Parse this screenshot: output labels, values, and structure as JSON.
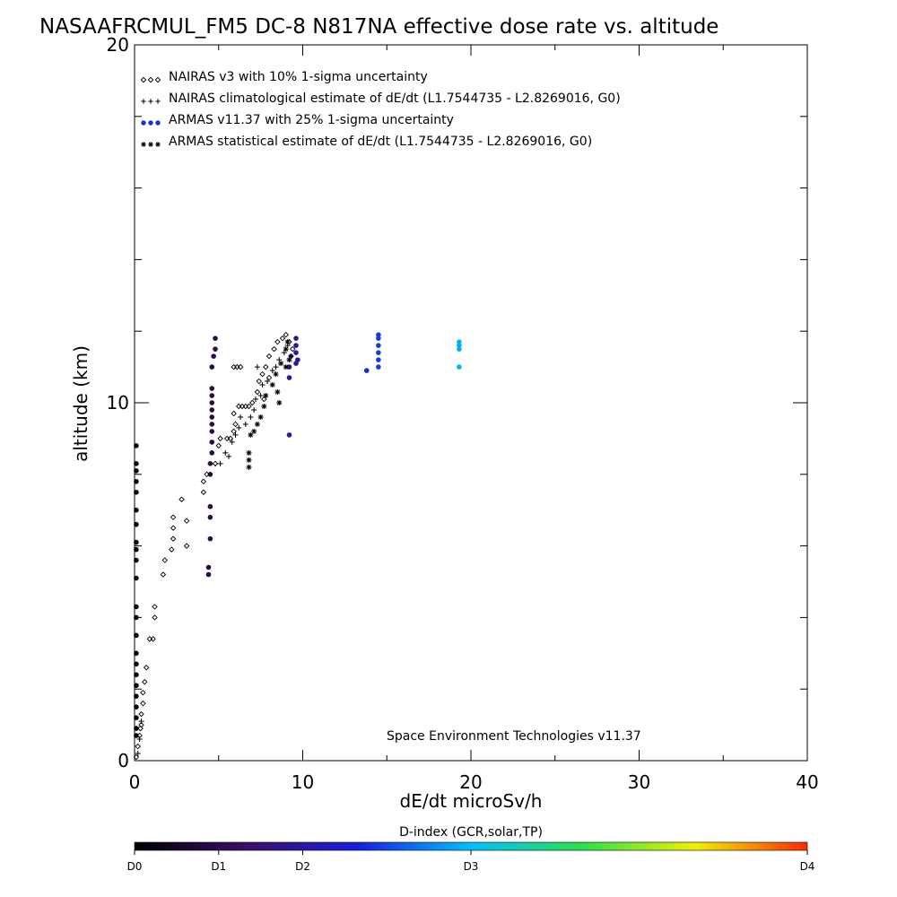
{
  "chart_data": {
    "type": "scatter",
    "title": "NASAAFRCMUL_FM5 DC-8   N817NA effective dose rate vs. altitude",
    "xlabel": "dE/dt microSv/h",
    "ylabel": "altitude (km)",
    "xlim": [
      0,
      40
    ],
    "ylim": [
      0,
      20
    ],
    "x_tick_labels": [
      "0",
      "10",
      "20",
      "30",
      "40"
    ],
    "y_tick_labels": [
      "0",
      "10",
      "20"
    ],
    "legend_placement": "top-left",
    "legend": [
      {
        "symbol": "◇◇◇",
        "text": "NAIRAS v3 with 10% 1-sigma uncertainty",
        "color": "#000000"
      },
      {
        "symbol": "+++",
        "text": "NAIRAS climatological estimate of dE/dt (L1.7544735 - L2.8269016, G0)",
        "color": "#000000"
      },
      {
        "symbol": "●●●",
        "text": "ARMAS v11.37 with 25% 1-sigma uncertainty",
        "color": "#1530d8"
      },
      {
        "symbol": "***",
        "text": "ARMAS statistical estimate of dE/dt (L1.7544735 - L2.8269016, G0)",
        "color": "#000000"
      }
    ],
    "credit": "Space Environment Technologies v11.37",
    "colorbar": {
      "title": "D-index (GCR,solar,TP)",
      "ticks": [
        {
          "label": "D0",
          "value": 0
        },
        {
          "label": "D1",
          "value": 5
        },
        {
          "label": "D2",
          "value": 10
        },
        {
          "label": "D3",
          "value": 20
        },
        {
          "label": "D4",
          "value": 40
        }
      ],
      "stops": [
        "#000000",
        "#3a0f68",
        "#1a1fe0",
        "#00bfff",
        "#2be04a",
        "#f0f000",
        "#ff2a00"
      ]
    },
    "series": [
      {
        "name": "NAIRAS v3 with 10% 1-sigma uncertainty",
        "marker": "diamond",
        "color": "#000000",
        "points": [
          [
            0.1,
            0.1
          ],
          [
            0.2,
            0.4
          ],
          [
            0.3,
            0.7
          ],
          [
            0.35,
            0.9
          ],
          [
            0.4,
            1.0
          ],
          [
            0.4,
            1.3
          ],
          [
            0.5,
            1.6
          ],
          [
            0.5,
            1.9
          ],
          [
            0.6,
            2.2
          ],
          [
            0.7,
            2.6
          ],
          [
            0.9,
            3.4
          ],
          [
            1.1,
            3.4
          ],
          [
            1.2,
            4.0
          ],
          [
            1.2,
            4.3
          ],
          [
            1.7,
            5.2
          ],
          [
            1.8,
            5.6
          ],
          [
            2.2,
            5.9
          ],
          [
            2.3,
            6.2
          ],
          [
            2.3,
            6.5
          ],
          [
            2.3,
            6.8
          ],
          [
            3.1,
            6.0
          ],
          [
            3.1,
            6.7
          ],
          [
            2.8,
            7.3
          ],
          [
            4.1,
            7.5
          ],
          [
            4.1,
            7.8
          ],
          [
            4.3,
            8.0
          ],
          [
            4.8,
            8.3
          ],
          [
            5.0,
            8.8
          ],
          [
            5.1,
            9.0
          ],
          [
            5.5,
            9.0
          ],
          [
            5.9,
            11.0
          ],
          [
            6.1,
            11.0
          ],
          [
            6.3,
            11.0
          ],
          [
            5.7,
            9.0
          ],
          [
            5.9,
            9.2
          ],
          [
            6.0,
            9.4
          ],
          [
            5.9,
            9.7
          ],
          [
            6.2,
            9.9
          ],
          [
            6.4,
            9.9
          ],
          [
            6.6,
            9.9
          ],
          [
            6.8,
            9.9
          ],
          [
            7.0,
            10.0
          ],
          [
            7.3,
            10.3
          ],
          [
            7.4,
            10.6
          ],
          [
            7.6,
            10.8
          ],
          [
            7.8,
            11.0
          ],
          [
            8.0,
            11.3
          ],
          [
            8.3,
            11.5
          ],
          [
            8.5,
            11.7
          ],
          [
            8.8,
            11.8
          ],
          [
            9.0,
            11.9
          ],
          [
            9.2,
            11.7
          ],
          [
            9.4,
            11.5
          ],
          [
            8.0,
            10.7
          ],
          [
            7.7,
            10.1
          ]
        ]
      },
      {
        "name": "NAIRAS climatological estimate of dE/dt (L1.7544735 - L2.8269016, G0)",
        "marker": "plus",
        "color": "#000000",
        "points": [
          [
            0.2,
            0.2
          ],
          [
            0.3,
            0.6
          ],
          [
            0.4,
            1.1
          ],
          [
            5.1,
            8.3
          ],
          [
            5.4,
            8.6
          ],
          [
            5.6,
            8.5
          ],
          [
            5.8,
            8.9
          ],
          [
            6.0,
            9.1
          ],
          [
            6.2,
            9.3
          ],
          [
            6.3,
            9.6
          ],
          [
            6.6,
            9.4
          ],
          [
            6.9,
            9.6
          ],
          [
            7.1,
            9.8
          ],
          [
            7.2,
            10.1
          ],
          [
            7.5,
            10.2
          ],
          [
            7.6,
            10.5
          ],
          [
            7.9,
            10.6
          ],
          [
            8.2,
            10.9
          ],
          [
            8.6,
            11.2
          ],
          [
            8.9,
            11.4
          ],
          [
            9.1,
            11.6
          ],
          [
            9.3,
            11.3
          ],
          [
            8.4,
            11.0
          ],
          [
            7.3,
            11.0
          ]
        ]
      },
      {
        "name": "ARMAS v11.37 with 25% 1-sigma uncertainty",
        "marker": "circle",
        "points": [
          [
            0.1,
            0.7
          ],
          [
            0.1,
            0.9
          ],
          [
            0.1,
            1.2
          ],
          [
            0.1,
            1.5
          ],
          [
            0.1,
            1.8
          ],
          [
            0.1,
            2.1
          ],
          [
            0.1,
            2.4
          ],
          [
            0.1,
            2.7
          ],
          [
            0.1,
            3.0
          ],
          [
            0.1,
            3.5
          ],
          [
            0.1,
            4.0
          ],
          [
            0.1,
            4.3
          ],
          [
            0.1,
            5.1
          ],
          [
            0.1,
            5.6
          ],
          [
            0.1,
            5.9
          ],
          [
            0.1,
            6.1
          ],
          [
            0.1,
            6.6
          ],
          [
            0.1,
            7.0
          ],
          [
            0.1,
            7.5
          ],
          [
            0.1,
            7.8
          ],
          [
            0.1,
            8.1
          ],
          [
            0.1,
            8.3
          ],
          [
            0.1,
            8.8
          ],
          [
            4.4,
            5.2
          ],
          [
            4.4,
            5.4
          ],
          [
            4.5,
            6.2
          ],
          [
            4.5,
            6.8
          ],
          [
            4.5,
            7.1
          ],
          [
            4.5,
            8.0
          ],
          [
            4.5,
            8.3
          ],
          [
            4.6,
            8.6
          ],
          [
            4.6,
            8.9
          ],
          [
            4.6,
            9.2
          ],
          [
            4.6,
            9.4
          ],
          [
            4.6,
            9.6
          ],
          [
            4.6,
            9.8
          ],
          [
            4.6,
            10.0
          ],
          [
            4.6,
            10.2
          ],
          [
            4.6,
            10.4
          ],
          [
            4.6,
            11.0
          ],
          [
            4.7,
            11.3
          ],
          [
            4.8,
            11.5
          ],
          [
            4.8,
            11.8
          ],
          [
            9.2,
            9.1
          ],
          [
            9.2,
            10.7
          ],
          [
            9.2,
            11.0
          ],
          [
            9.3,
            11.3
          ],
          [
            9.6,
            11.1
          ],
          [
            9.6,
            11.4
          ],
          [
            9.6,
            11.6
          ],
          [
            9.6,
            11.8
          ],
          [
            9.7,
            11.2
          ],
          [
            13.8,
            10.9
          ],
          [
            14.5,
            11.0
          ],
          [
            14.5,
            11.2
          ],
          [
            14.5,
            11.4
          ],
          [
            14.5,
            11.6
          ],
          [
            14.5,
            11.8
          ],
          [
            14.5,
            11.9
          ],
          [
            19.3,
            11.0
          ],
          [
            19.3,
            11.5
          ],
          [
            19.3,
            11.6
          ],
          [
            19.3,
            11.7
          ]
        ]
      },
      {
        "name": "ARMAS statistical estimate of dE/dt (L1.7544735 - L2.8269016, G0)",
        "marker": "asterisk",
        "color": "#000000",
        "points": [
          [
            6.8,
            8.2
          ],
          [
            6.8,
            8.4
          ],
          [
            6.8,
            8.6
          ],
          [
            6.9,
            9.1
          ],
          [
            7.1,
            9.2
          ],
          [
            7.3,
            9.4
          ],
          [
            7.5,
            9.6
          ],
          [
            7.7,
            9.9
          ],
          [
            7.8,
            10.2
          ],
          [
            8.2,
            10.5
          ],
          [
            8.4,
            10.8
          ],
          [
            8.7,
            11.1
          ],
          [
            9.0,
            11.5
          ],
          [
            9.1,
            11.7
          ],
          [
            8.5,
            10.3
          ],
          [
            8.6,
            10.0
          ],
          [
            9.2,
            11.2
          ],
          [
            9.0,
            11.0
          ]
        ]
      }
    ]
  }
}
